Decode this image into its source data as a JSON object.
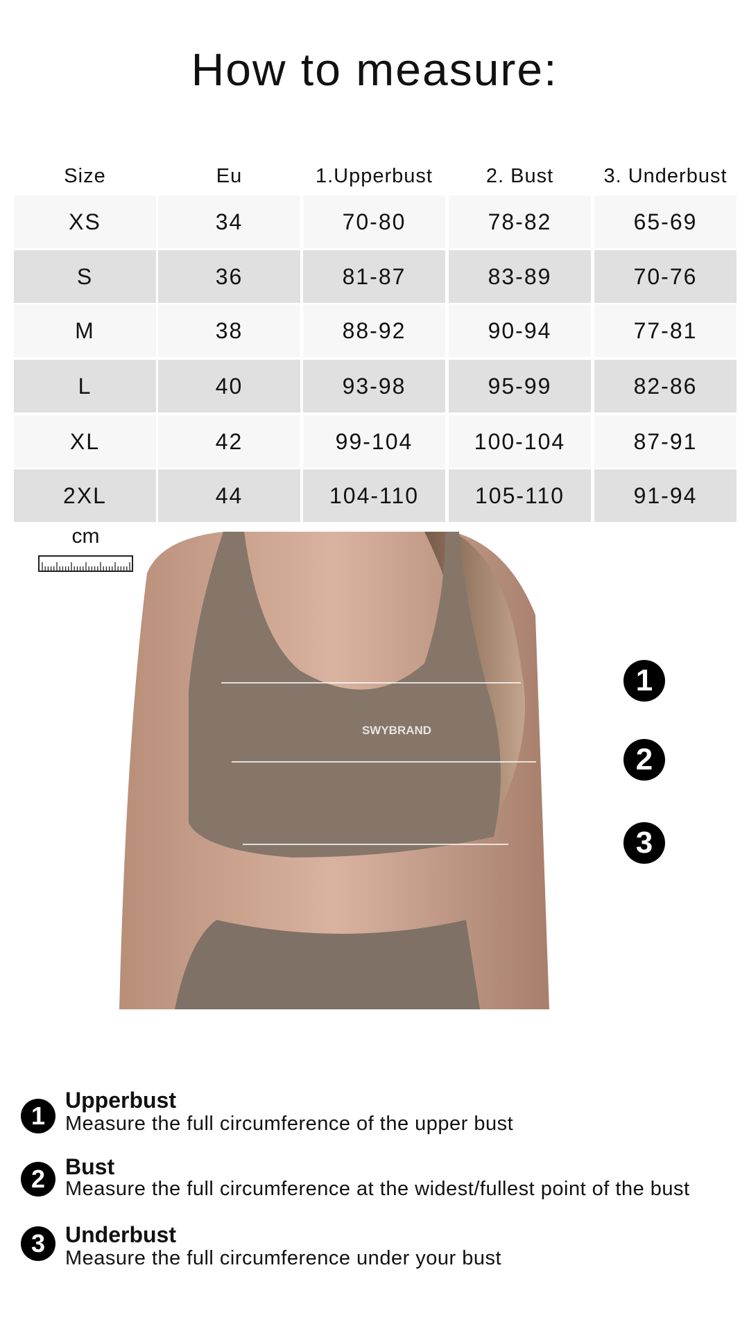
{
  "title": "How to measure:",
  "table": {
    "headers": [
      "Size",
      "Eu",
      "1.Upperbust",
      "2. Bust",
      "3. Underbust"
    ],
    "rows": [
      [
        "XS",
        "34",
        "70-80",
        "78-82",
        "65-69"
      ],
      [
        "S",
        "36",
        "81-87",
        "83-89",
        "70-76"
      ],
      [
        "M",
        "38",
        "88-92",
        "90-94",
        "77-81"
      ],
      [
        "L",
        "40",
        "93-98",
        "95-99",
        "82-86"
      ],
      [
        "XL",
        "42",
        "99-104",
        "100-104",
        "87-91"
      ],
      [
        "2XL",
        "44",
        "104-110",
        "105-110",
        "91-94"
      ]
    ],
    "row_colors": [
      "#f7f7f7",
      "#e0e0e0"
    ]
  },
  "unit": "cm",
  "photo": {
    "garment_logo": "SWYBRAND",
    "markers": [
      "1",
      "2",
      "3"
    ]
  },
  "legend": [
    {
      "num": "1",
      "title": "Upperbust",
      "desc": "Measure the full circumference of the upper bust"
    },
    {
      "num": "2",
      "title": "Bust",
      "desc": "Measure the full circumference at the widest/fullest point of the bust"
    },
    {
      "num": "3",
      "title": "Underbust",
      "desc": "Measure the full circumference under your bust"
    }
  ]
}
